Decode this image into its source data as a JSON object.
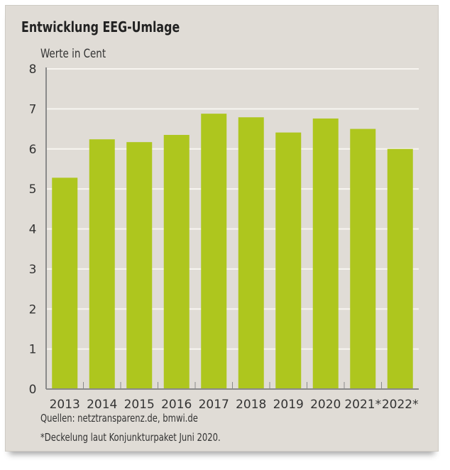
{
  "chart_data": {
    "type": "bar",
    "title": "Entwicklung EEG-Umlage",
    "ylabel": "Werte in Cent",
    "xlabel": "",
    "categories": [
      "2013",
      "2014",
      "2015",
      "2016",
      "2017",
      "2018",
      "2019",
      "2020",
      "2021*",
      "2022*"
    ],
    "values": [
      5.28,
      6.24,
      6.17,
      6.35,
      6.88,
      6.79,
      6.41,
      6.76,
      6.5,
      6.0
    ],
    "ylim": [
      0,
      8
    ],
    "yticks": [
      "0",
      "1",
      "2",
      "3",
      "4",
      "5",
      "6",
      "7",
      "8"
    ],
    "grid": true,
    "bar_color": "#aec61e",
    "grid_color": "#f7f5f0",
    "axis_color": "#8a8a8a"
  },
  "footer": {
    "sources": "Quellen: netztransparenz.de, bmwi.de",
    "note": "*Deckelung laut Konjunkturpaket Juni 2020."
  }
}
